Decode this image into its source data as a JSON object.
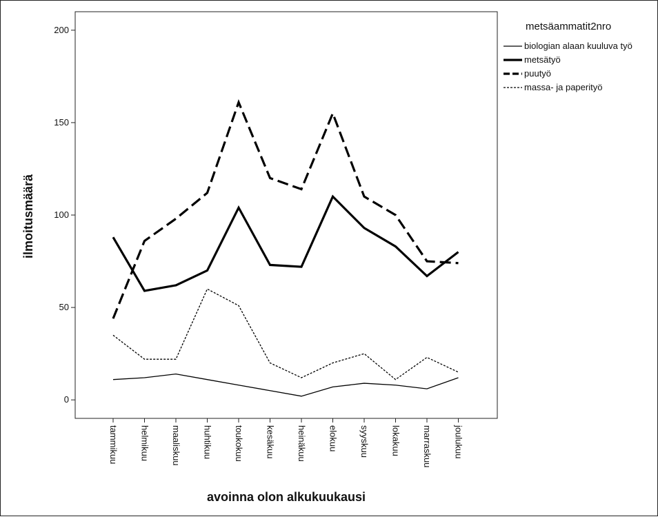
{
  "chart_data": {
    "type": "line",
    "title": "",
    "xlabel": "avoinna olon alkukuukausi",
    "ylabel": "ilmoitusmäärä",
    "ylim": [
      -10,
      210
    ],
    "yticks": [
      0,
      50,
      100,
      150,
      200
    ],
    "grid": false,
    "legend_placement": "right",
    "legend_title": "metsäammatit2nro",
    "categories": [
      "tammikuu",
      "helmikuu",
      "maaliskuu",
      "huhtikuu",
      "toukokuu",
      "kesäkuu",
      "heinäkuu",
      "elokuu",
      "syyskuu",
      "lokakuu",
      "marraskuu",
      "joulukuu"
    ],
    "series": [
      {
        "name": "biologian alaan kuuluva työ",
        "style": "thin-solid",
        "values": [
          11,
          12,
          14,
          11,
          8,
          5,
          2,
          7,
          9,
          8,
          6,
          12
        ]
      },
      {
        "name": "metsätyö",
        "style": "thick-solid",
        "values": [
          88,
          59,
          62,
          70,
          104,
          73,
          72,
          110,
          93,
          83,
          67,
          80
        ]
      },
      {
        "name": "puutyö",
        "style": "thick-dashed",
        "values": [
          44,
          86,
          98,
          112,
          161,
          120,
          114,
          155,
          110,
          100,
          75,
          74
        ]
      },
      {
        "name": "massa- ja paperityö",
        "style": "thin-dotted",
        "values": [
          35,
          22,
          22,
          60,
          51,
          20,
          12,
          20,
          25,
          11,
          23,
          15
        ]
      }
    ],
    "colors": {
      "line": "#000000",
      "axis": "#222222",
      "background": "#ffffff"
    }
  }
}
